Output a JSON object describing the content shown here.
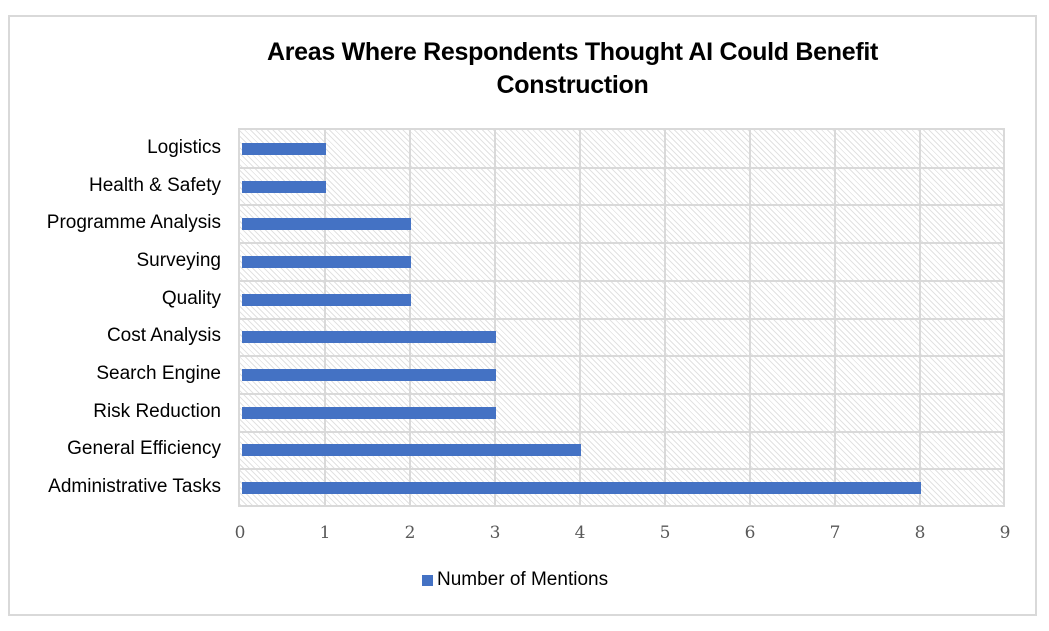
{
  "chart_data": {
    "type": "bar",
    "orientation": "horizontal",
    "title": "Areas Where Respondents Thought AI Could Benefit Construction",
    "title_lines": [
      "Areas Where Respondents Thought AI Could Benefit",
      "Construction"
    ],
    "categories": [
      "Logistics",
      "Health & Safety",
      "Programme Analysis",
      "Surveying",
      "Quality",
      "Cost Analysis",
      "Search Engine",
      "Risk Reduction",
      "General Efficiency",
      "Administrative Tasks"
    ],
    "series": [
      {
        "name": "Number of Mentions",
        "color": "#4472c4",
        "values": [
          1,
          1,
          2,
          2,
          2,
          3,
          3,
          3,
          4,
          8
        ]
      }
    ],
    "xlabel": "",
    "ylabel": "",
    "xlim": [
      0,
      9
    ],
    "x_ticks": [
      "0",
      "1",
      "2",
      "3",
      "4",
      "5",
      "6",
      "7",
      "8",
      "9"
    ],
    "grid": true,
    "legend_position": "bottom",
    "plot_background": "diagonal-hatch"
  },
  "legend": {
    "label": "Number of Mentions",
    "color": "#4472c4"
  }
}
